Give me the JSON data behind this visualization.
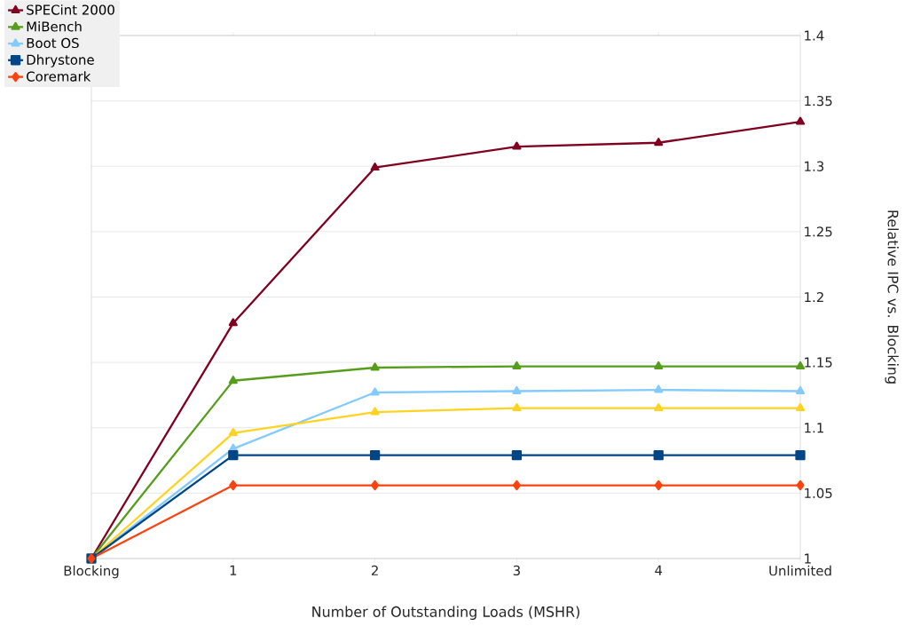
{
  "chart_data": {
    "type": "line",
    "xlabel": "Number of Outstanding Loads (MSHR)",
    "ylabel": "Relative IPC vs. Blocking",
    "categories": [
      "Blocking",
      "1",
      "2",
      "3",
      "4",
      "Unlimited"
    ],
    "series": [
      {
        "name": "SPECint 2000",
        "color": "#800020",
        "marker": "triangle",
        "values": [
          1,
          1.18,
          1.299,
          1.315,
          1.318,
          1.334
        ]
      },
      {
        "name": "MiBench",
        "color": "#579d1c",
        "marker": "triangle",
        "values": [
          1,
          1.136,
          1.146,
          1.147,
          1.147,
          1.147
        ]
      },
      {
        "name": "Boot OS",
        "color": "#83caff",
        "marker": "triangle",
        "values": [
          1,
          1.084,
          1.127,
          1.128,
          1.129,
          1.128
        ]
      },
      {
        "color": "#ffd320",
        "marker": "triangle",
        "values": [
          1,
          1.096,
          1.112,
          1.115,
          1.115,
          1.115
        ]
      },
      {
        "name": "Dhrystone",
        "color": "#004586",
        "marker": "square",
        "values": [
          1,
          1.079,
          1.079,
          1.079,
          1.079,
          1.079
        ]
      },
      {
        "name": "Coremark",
        "color": "#ff420e",
        "marker": "diamond",
        "values": [
          1,
          1.056,
          1.056,
          1.056,
          1.056,
          1.056
        ]
      }
    ],
    "ylim": [
      1,
      1.4
    ],
    "yticks": [
      1,
      1.05,
      1.1,
      1.15,
      1.2,
      1.25,
      1.3,
      1.35,
      1.4
    ],
    "grid": "y",
    "legend": "top left",
    "line_style": "solid"
  }
}
